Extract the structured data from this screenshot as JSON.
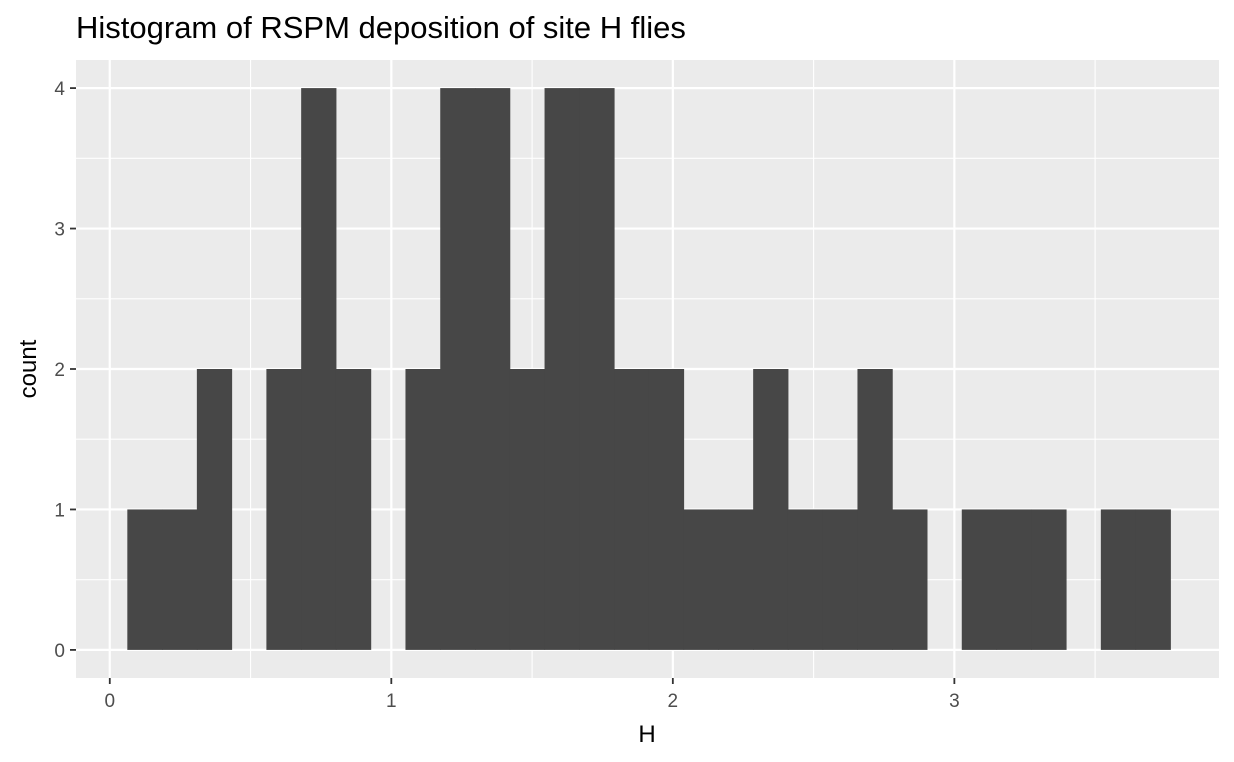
{
  "chart_data": {
    "type": "bar",
    "title": "Histogram of RSPM deposition of site H flies",
    "xlabel": "H",
    "ylabel": "count",
    "x_ticks": [
      "0",
      "1",
      "2",
      "3"
    ],
    "y_ticks": [
      "0",
      "1",
      "2",
      "3",
      "4"
    ],
    "xlim": [
      -0.12,
      3.94
    ],
    "ylim": [
      -0.2,
      4.2
    ],
    "grid": true,
    "bin_width": 0.1235,
    "bin_start": 0.0623,
    "counts": [
      1,
      1,
      2,
      0,
      2,
      4,
      2,
      0,
      2,
      4,
      4,
      2,
      4,
      4,
      2,
      2,
      1,
      1,
      2,
      1,
      1,
      2,
      1,
      0,
      1,
      1,
      1,
      0,
      1,
      1
    ],
    "bar_color": "#474747",
    "panel_color": "#ebebeb"
  }
}
